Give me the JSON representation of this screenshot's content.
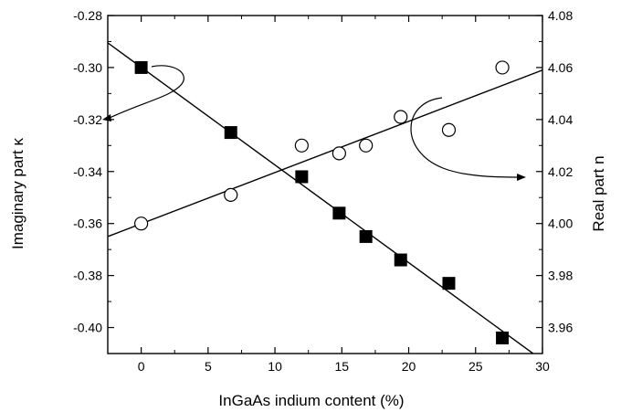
{
  "chart_data": {
    "type": "scatter",
    "xlabel": "InGaAs indium content (%)",
    "ylabel_left": "Imaginary part κ",
    "ylabel_right": "Real part n",
    "xlim": [
      -2.5,
      30
    ],
    "ylim_left": [
      -0.41,
      -0.28
    ],
    "ylim_right": [
      3.95,
      4.08
    ],
    "x_ticks": [
      0,
      5,
      10,
      15,
      20,
      25,
      30
    ],
    "x_tick_labels": [
      "0",
      "5",
      "10",
      "15",
      "20",
      "25",
      "30"
    ],
    "y_left_ticks": [
      -0.28,
      -0.3,
      -0.32,
      -0.34,
      -0.36,
      -0.38,
      -0.4
    ],
    "y_left_tick_labels": [
      "-0.28",
      "-0.30",
      "-0.32",
      "-0.34",
      "-0.36",
      "-0.38",
      "-0.40"
    ],
    "y_right_ticks": [
      4.08,
      4.06,
      4.04,
      4.02,
      4.0,
      3.98,
      3.96
    ],
    "y_right_tick_labels": [
      "4.08",
      "4.06",
      "4.04",
      "4.02",
      "4.00",
      "3.98",
      "3.96"
    ],
    "grid": false,
    "legend": "none",
    "series": [
      {
        "axis": "left",
        "marker": "filled-square",
        "color": "#000000",
        "x": [
          0,
          6.7,
          12,
          14.8,
          16.8,
          19.4,
          23,
          27
        ],
        "y": [
          -0.3,
          -0.325,
          -0.342,
          -0.356,
          -0.365,
          -0.374,
          -0.383,
          -0.404
        ],
        "fit_line": {
          "x": [
            -2.5,
            29.3
          ],
          "y": [
            -0.2905,
            -0.41
          ]
        }
      },
      {
        "axis": "right",
        "marker": "open-circle",
        "color": "#000000",
        "x": [
          0,
          6.7,
          12,
          14.8,
          16.8,
          19.4,
          23,
          27
        ],
        "y": [
          4.0,
          4.011,
          4.03,
          4.027,
          4.03,
          4.041,
          4.036,
          4.06
        ],
        "fit_line": {
          "x": [
            -2.5,
            30
          ],
          "y": [
            3.995,
            4.059
          ]
        }
      }
    ]
  }
}
